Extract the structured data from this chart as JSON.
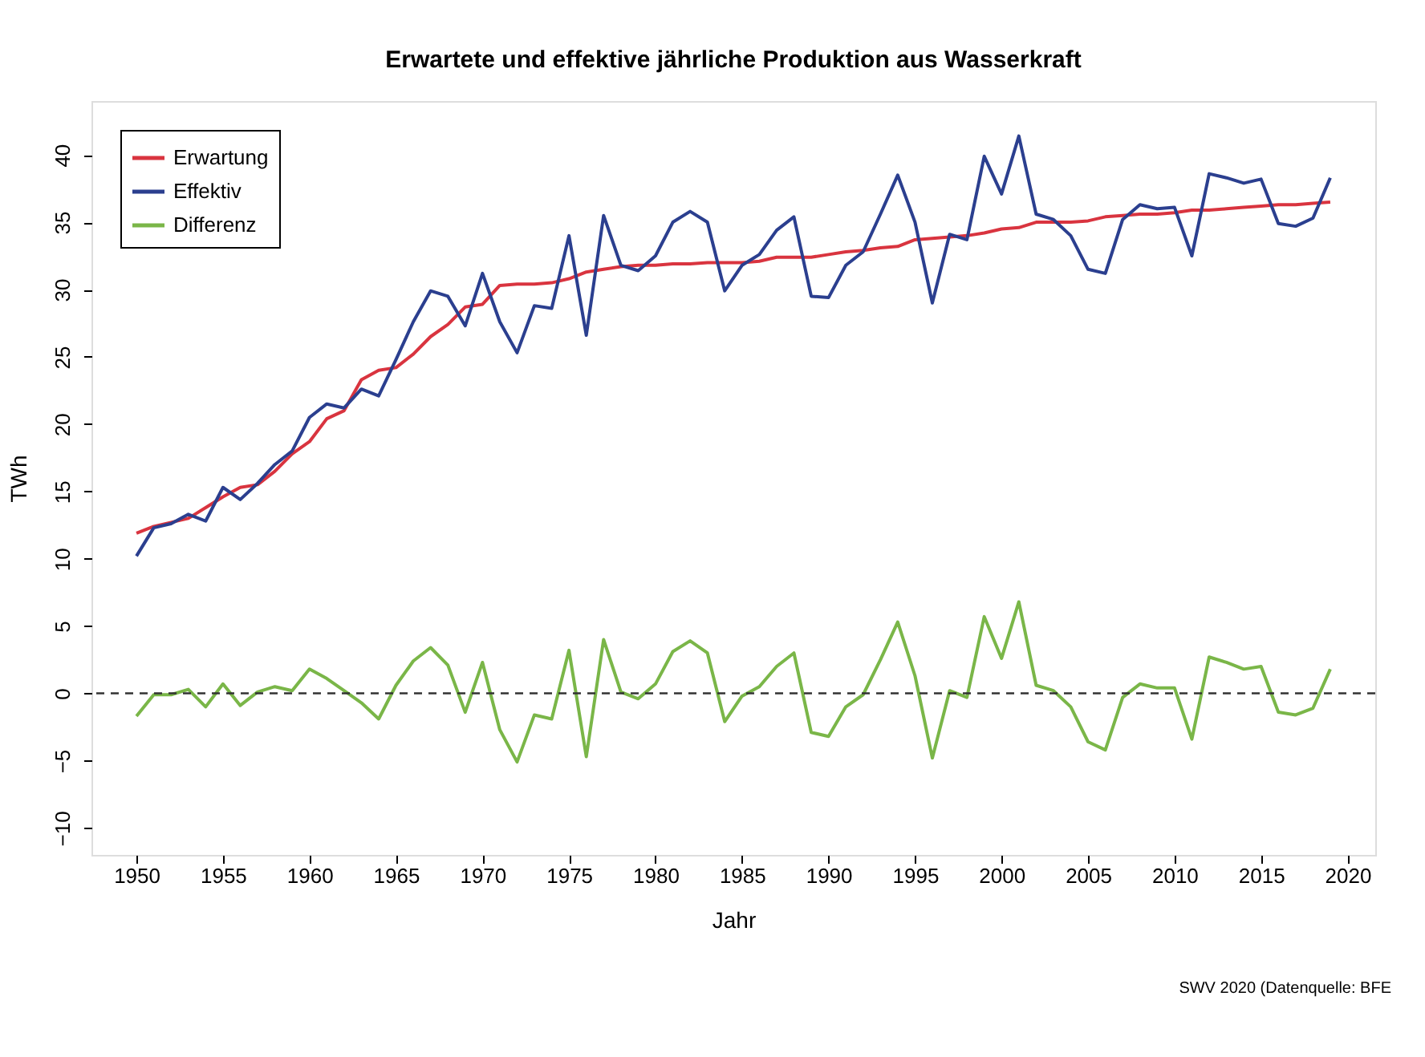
{
  "chart_data": {
    "type": "line",
    "title": "Erwartete und effektive jährliche Produktion aus Wasserkraft",
    "xlabel": "Jahr",
    "ylabel": "TWh",
    "x": [
      1950,
      1951,
      1952,
      1953,
      1954,
      1955,
      1956,
      1957,
      1958,
      1959,
      1960,
      1961,
      1962,
      1963,
      1964,
      1965,
      1966,
      1967,
      1968,
      1969,
      1970,
      1971,
      1972,
      1973,
      1974,
      1975,
      1976,
      1977,
      1978,
      1979,
      1980,
      1981,
      1982,
      1983,
      1984,
      1985,
      1986,
      1987,
      1988,
      1989,
      1990,
      1991,
      1992,
      1993,
      1994,
      1995,
      1996,
      1997,
      1998,
      1999,
      2000,
      2001,
      2002,
      2003,
      2004,
      2005,
      2006,
      2007,
      2008,
      2009,
      2010,
      2011,
      2012,
      2013,
      2014,
      2015,
      2016,
      2017,
      2018,
      2019
    ],
    "series": [
      {
        "name": "Erwartung",
        "color": "#d9343f",
        "values": [
          11.9,
          12.4,
          12.7,
          13.0,
          13.8,
          14.6,
          15.3,
          15.5,
          16.5,
          17.8,
          18.7,
          20.4,
          21.0,
          23.3,
          24.0,
          24.2,
          25.2,
          26.5,
          27.4,
          28.7,
          28.9,
          30.3,
          30.4,
          30.4,
          30.5,
          30.8,
          31.3,
          31.5,
          31.7,
          31.8,
          31.8,
          31.9,
          31.9,
          32.0,
          32.0,
          32.0,
          32.1,
          32.4,
          32.4,
          32.4,
          32.6,
          32.8,
          32.9,
          33.1,
          33.2,
          33.7,
          33.8,
          33.9,
          34.0,
          34.2,
          34.5,
          34.6,
          35.0,
          35.0,
          35.0,
          35.1,
          35.4,
          35.5,
          35.6,
          35.6,
          35.7,
          35.9,
          35.9,
          36.0,
          36.1,
          36.2,
          36.3,
          36.3,
          36.4,
          36.5
        ]
      },
      {
        "name": "Effektiv",
        "color": "#2b3f8f",
        "values": [
          10.2,
          12.3,
          12.6,
          13.3,
          12.8,
          15.3,
          14.4,
          15.6,
          17.0,
          18.0,
          20.5,
          21.5,
          21.2,
          22.6,
          22.1,
          24.8,
          27.6,
          29.9,
          29.5,
          27.3,
          31.2,
          27.6,
          25.3,
          28.8,
          28.6,
          34.0,
          26.6,
          35.5,
          31.8,
          31.4,
          32.5,
          35.0,
          35.8,
          35.0,
          29.9,
          31.8,
          32.6,
          34.4,
          35.4,
          29.5,
          29.4,
          31.8,
          32.8,
          35.6,
          38.5,
          35.0,
          29.0,
          34.1,
          33.7,
          39.9,
          37.1,
          41.4,
          35.6,
          35.2,
          34.0,
          31.5,
          31.2,
          35.2,
          36.3,
          36.0,
          36.1,
          32.5,
          38.6,
          38.3,
          37.9,
          38.2,
          34.9,
          34.7,
          35.3,
          38.3
        ]
      },
      {
        "name": "Differenz",
        "color": "#7ab648",
        "values": [
          -1.7,
          -0.1,
          -0.1,
          0.3,
          -1.0,
          0.7,
          -0.9,
          0.1,
          0.5,
          0.2,
          1.8,
          1.1,
          0.2,
          -0.7,
          -1.9,
          0.6,
          2.4,
          3.4,
          2.1,
          -1.4,
          2.3,
          -2.7,
          -5.1,
          -1.6,
          -1.9,
          3.2,
          -4.7,
          4.0,
          0.1,
          -0.4,
          0.7,
          3.1,
          3.9,
          3.0,
          -2.1,
          -0.2,
          0.5,
          2.0,
          3.0,
          -2.9,
          -3.2,
          -1.0,
          -0.1,
          2.5,
          5.3,
          1.3,
          -4.8,
          0.2,
          -0.3,
          5.7,
          2.6,
          6.8,
          0.6,
          0.2,
          -1.0,
          -3.6,
          -4.2,
          -0.3,
          0.7,
          0.4,
          0.4,
          -3.4,
          2.7,
          2.3,
          1.8,
          2.0,
          -1.4,
          -1.6,
          -1.1,
          1.8
        ]
      }
    ],
    "xlim": [
      1947.4,
      2021.6
    ],
    "xticks": [
      1950,
      1955,
      1960,
      1965,
      1970,
      1975,
      1980,
      1985,
      1990,
      1995,
      2000,
      2005,
      2010,
      2015,
      2020
    ],
    "ylim": [
      -12,
      44
    ],
    "yticks": [
      -10,
      -5,
      0,
      5,
      10,
      15,
      20,
      25,
      30,
      35,
      40
    ],
    "ref_lines": [
      {
        "axis": "y",
        "value": 0,
        "color": "#333333",
        "line_style": "dashed"
      }
    ],
    "legend": "top left",
    "grid": false,
    "marker": "none",
    "line_style": "solid",
    "annotations": [
      "SWV 2020 (Datenquelle: BFE"
    ]
  }
}
